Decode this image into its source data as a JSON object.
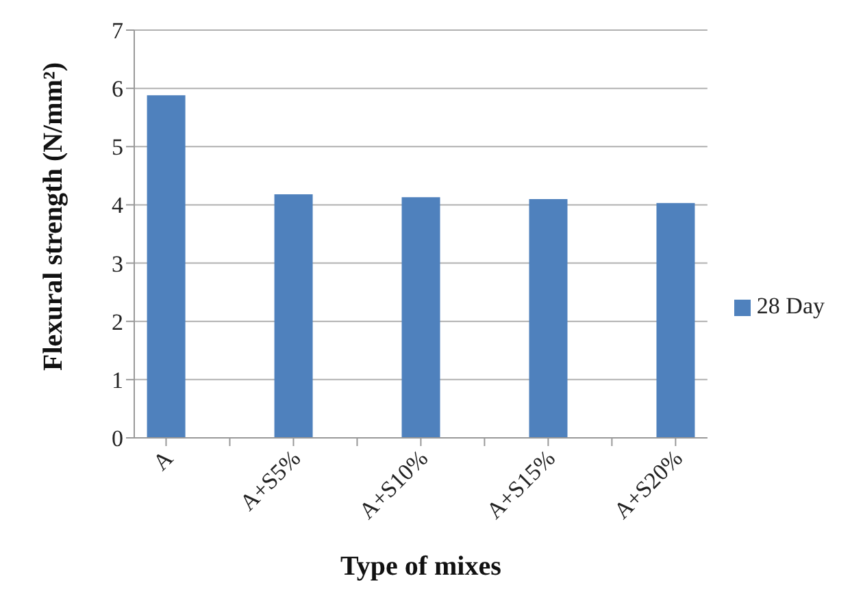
{
  "chart_data": {
    "type": "bar",
    "xlabel": "Type of mixes",
    "ylabel": "Flexural strength (N/mm²)",
    "categories": [
      "A",
      null,
      "A+S5%",
      null,
      "A+S10%",
      null,
      "A+S15%",
      null,
      "A+S20%"
    ],
    "series": [
      {
        "name": "28 Day",
        "color": "#4f81bd",
        "values": [
          5.88,
          null,
          4.18,
          null,
          4.13,
          null,
          4.1,
          null,
          4.03
        ]
      }
    ],
    "ylim": [
      0,
      7
    ],
    "yticks": [
      0,
      1,
      2,
      3,
      4,
      5,
      6,
      7
    ],
    "grid": "y",
    "legend": "right"
  }
}
